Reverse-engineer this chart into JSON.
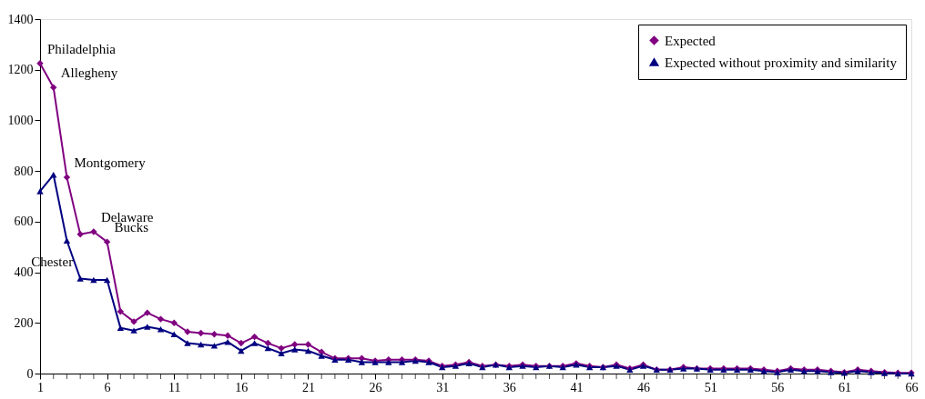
{
  "chart_data": {
    "type": "line",
    "x": [
      1,
      2,
      3,
      4,
      5,
      6,
      7,
      8,
      9,
      10,
      11,
      12,
      13,
      14,
      15,
      16,
      17,
      18,
      19,
      20,
      21,
      22,
      23,
      24,
      25,
      26,
      27,
      28,
      29,
      30,
      31,
      32,
      33,
      34,
      35,
      36,
      37,
      38,
      39,
      40,
      41,
      42,
      43,
      44,
      45,
      46,
      47,
      48,
      49,
      50,
      51,
      52,
      53,
      54,
      55,
      56,
      57,
      58,
      59,
      60,
      61,
      62,
      63,
      64,
      65,
      66
    ],
    "series": [
      {
        "name": "Expected",
        "color": "#800080",
        "marker": "diamond",
        "values": [
          1225,
          1130,
          775,
          550,
          560,
          520,
          245,
          205,
          240,
          215,
          200,
          165,
          160,
          155,
          150,
          120,
          145,
          120,
          100,
          115,
          115,
          85,
          60,
          60,
          60,
          50,
          55,
          55,
          55,
          50,
          30,
          35,
          45,
          30,
          35,
          30,
          35,
          30,
          30,
          30,
          40,
          30,
          25,
          35,
          20,
          35,
          15,
          15,
          25,
          20,
          20,
          20,
          20,
          20,
          15,
          10,
          20,
          15,
          15,
          10,
          5,
          15,
          10,
          5,
          3,
          3
        ]
      },
      {
        "name": "Expected without proximity and similarity",
        "color": "#000080",
        "marker": "triangle",
        "values": [
          720,
          785,
          525,
          375,
          370,
          370,
          180,
          170,
          185,
          175,
          155,
          120,
          115,
          110,
          125,
          90,
          120,
          100,
          80,
          95,
          90,
          70,
          55,
          55,
          45,
          45,
          45,
          45,
          50,
          45,
          25,
          30,
          40,
          25,
          35,
          25,
          30,
          25,
          30,
          25,
          35,
          25,
          25,
          30,
          15,
          30,
          15,
          15,
          20,
          20,
          15,
          15,
          15,
          15,
          10,
          5,
          15,
          10,
          10,
          5,
          3,
          10,
          5,
          2,
          0,
          0
        ]
      }
    ],
    "xlim": [
      1,
      66
    ],
    "xticks": [
      1,
      {
        "value": 2,
        "label": null
      },
      {
        "value": 3,
        "label": null
      },
      {
        "value": 4,
        "label": null
      },
      {
        "value": 5,
        "label": null
      },
      6,
      {
        "value": 7,
        "label": null
      },
      {
        "value": 8,
        "label": null
      },
      {
        "value": 9,
        "label": null
      },
      {
        "value": 10,
        "label": null
      },
      11,
      {
        "value": 12,
        "label": null
      },
      {
        "value": 13,
        "label": null
      },
      {
        "value": 14,
        "label": null
      },
      {
        "value": 15,
        "label": null
      },
      16,
      {
        "value": 17,
        "label": null
      },
      {
        "value": 18,
        "label": null
      },
      {
        "value": 19,
        "label": null
      },
      {
        "value": 20,
        "label": null
      },
      21,
      {
        "value": 22,
        "label": null
      },
      {
        "value": 23,
        "label": null
      },
      {
        "value": 24,
        "label": null
      },
      {
        "value": 25,
        "label": null
      },
      26,
      {
        "value": 27,
        "label": null
      },
      {
        "value": 28,
        "label": null
      },
      {
        "value": 29,
        "label": null
      },
      {
        "value": 30,
        "label": null
      },
      31,
      {
        "value": 32,
        "label": null
      },
      {
        "value": 33,
        "label": null
      },
      {
        "value": 34,
        "label": null
      },
      {
        "value": 35,
        "label": null
      },
      36,
      {
        "value": 37,
        "label": null
      },
      {
        "value": 38,
        "label": null
      },
      {
        "value": 39,
        "label": null
      },
      {
        "value": 40,
        "label": null
      },
      41,
      {
        "value": 42,
        "label": null
      },
      {
        "value": 43,
        "label": null
      },
      {
        "value": 44,
        "label": null
      },
      {
        "value": 45,
        "label": null
      },
      46,
      {
        "value": 47,
        "label": null
      },
      {
        "value": 48,
        "label": null
      },
      {
        "value": 49,
        "label": null
      },
      {
        "value": 50,
        "label": null
      },
      51,
      {
        "value": 52,
        "label": null
      },
      {
        "value": 53,
        "label": null
      },
      {
        "value": 54,
        "label": null
      },
      {
        "value": 55,
        "label": null
      },
      56,
      {
        "value": 57,
        "label": null
      },
      {
        "value": 58,
        "label": null
      },
      {
        "value": 59,
        "label": null
      },
      {
        "value": 60,
        "label": null
      },
      61,
      {
        "value": 62,
        "label": null
      },
      {
        "value": 63,
        "label": null
      },
      {
        "value": 64,
        "label": null
      },
      {
        "value": 65,
        "label": null
      },
      66
    ],
    "ylim": [
      0,
      1400
    ],
    "yticks": [
      0,
      200,
      400,
      600,
      800,
      1000,
      1200,
      1400
    ],
    "grid": false,
    "legend": "top right",
    "annotations": [
      {
        "text": "Philadelphia",
        "x": 1,
        "y": 1225
      },
      {
        "text": "Allegheny",
        "x": 2,
        "y": 1130
      },
      {
        "text": "Montgomery",
        "x": 3,
        "y": 775
      },
      {
        "text": "Delaware",
        "x": 5,
        "y": 560
      },
      {
        "text": "Chester",
        "x": 4,
        "y": 550
      },
      {
        "text": "Bucks",
        "x": 6,
        "y": 520
      }
    ]
  }
}
